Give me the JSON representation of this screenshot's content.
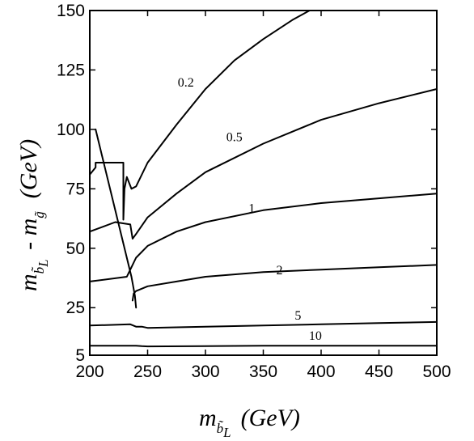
{
  "chart_data": {
    "type": "line",
    "xlabel": "m_{b̃_L} (GeV)",
    "ylabel": "m_{b̃_L} - m_g̃ (GeV)",
    "xlim": [
      200,
      500
    ],
    "ylim": [
      5,
      150
    ],
    "x_ticks": [
      "200",
      "250",
      "300",
      "350",
      "400",
      "450",
      "500"
    ],
    "y_ticks": [
      "5",
      "25",
      "50",
      "75",
      "100",
      "125",
      "150"
    ],
    "boundary": {
      "x": [
        205,
        236,
        239,
        240
      ],
      "y": [
        100,
        38,
        30,
        25
      ]
    },
    "series": [
      {
        "label": "0.2",
        "x": [
          200,
          205,
          205,
          229,
          229,
          230,
          232,
          236,
          240,
          250,
          275,
          300,
          325,
          350,
          375,
          390
        ],
        "y": [
          81,
          84,
          86,
          86,
          62,
          75,
          80,
          75,
          76,
          86,
          102,
          117,
          129,
          138,
          146,
          150
        ]
      },
      {
        "label": "0.5",
        "x": [
          200,
          222,
          222,
          235,
          237,
          240,
          250,
          275,
          300,
          350,
          400,
          450,
          500
        ],
        "y": [
          57,
          61,
          61,
          60,
          54,
          56,
          63,
          73,
          82,
          94,
          104,
          111,
          117
        ]
      },
      {
        "label": "1",
        "x": [
          200,
          232,
          234,
          236,
          240,
          250,
          275,
          300,
          350,
          400,
          450,
          500
        ],
        "y": [
          36,
          38,
          40,
          42,
          46,
          51,
          57,
          61,
          66,
          69,
          71,
          73
        ]
      },
      {
        "label": "2",
        "x": [
          237,
          238,
          240,
          250,
          275,
          300,
          350,
          400,
          450,
          500
        ],
        "y": [
          28,
          31,
          32,
          34,
          36,
          38,
          40,
          41,
          42,
          43
        ]
      },
      {
        "label": "5",
        "x": [
          200,
          235,
          240,
          245,
          250,
          300,
          350,
          400,
          450,
          500
        ],
        "y": [
          17.5,
          18,
          17,
          17,
          16.5,
          17,
          17.5,
          18,
          18.5,
          19
        ]
      },
      {
        "label": "10",
        "x": [
          200,
          240,
          245,
          250,
          300,
          350,
          400,
          450,
          500
        ],
        "y": [
          9,
          9,
          8.8,
          8.7,
          8.8,
          9,
          9,
          9,
          9
        ]
      }
    ],
    "curve_labels": [
      {
        "text": "0.2",
        "x": 283,
        "y": 118
      },
      {
        "text": "0.5",
        "x": 325,
        "y": 95
      },
      {
        "text": "1",
        "x": 340,
        "y": 65
      },
      {
        "text": "2",
        "x": 364,
        "y": 39
      },
      {
        "text": "5",
        "x": 380,
        "y": 20
      },
      {
        "text": "10",
        "x": 395,
        "y": 11.5
      }
    ],
    "grid": false,
    "legend": "none"
  }
}
